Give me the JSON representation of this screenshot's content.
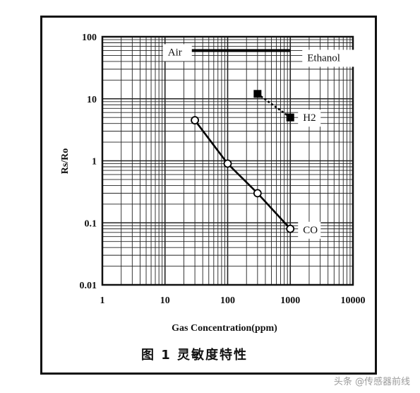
{
  "chart_data": {
    "type": "line",
    "xlabel": "Gas Concentration(ppm)",
    "ylabel": "Rs/Ro",
    "x_scale": "log",
    "y_scale": "log",
    "xlim": [
      1,
      10000
    ],
    "ylim": [
      0.01,
      100
    ],
    "x_ticks": [
      "1",
      "10",
      "100",
      "1000",
      "10000"
    ],
    "y_ticks": [
      "100",
      "10",
      "1",
      "0.1",
      "0.01"
    ],
    "grid": true,
    "series": [
      {
        "name": "Air",
        "marker": "none",
        "points": [
          [
            10,
            60
          ],
          [
            1000,
            60
          ]
        ]
      },
      {
        "name": "Ethanol",
        "marker": "none",
        "points": [
          [
            1000,
            60
          ]
        ]
      },
      {
        "name": "H2",
        "marker": "square",
        "points": [
          [
            300,
            12
          ],
          [
            1000,
            5
          ]
        ]
      },
      {
        "name": "CO",
        "marker": "circle",
        "points": [
          [
            30,
            4.5
          ],
          [
            100,
            0.9
          ],
          [
            300,
            0.3
          ],
          [
            1000,
            0.08
          ]
        ]
      }
    ]
  },
  "caption": "图 1   灵敏度特性",
  "watermark": "头条 @传感器前线"
}
